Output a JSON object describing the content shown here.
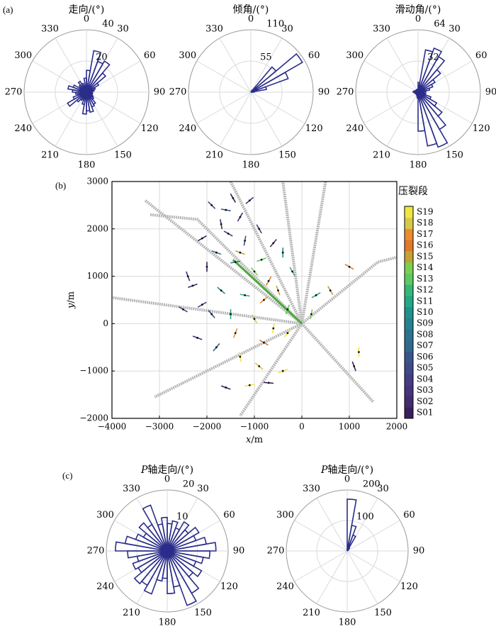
{
  "panel_labels": {
    "a": "(a)",
    "b": "(b)",
    "c": "(c)"
  },
  "colors": {
    "rose": "#2b2d8a",
    "well": "#b5b5b5",
    "grid": "#dadada",
    "main_well": "#4caa3a"
  },
  "chart_data": [
    {
      "id": "strike",
      "type": "rose",
      "title": "走向/(°)",
      "angle_labels": [
        "0",
        "30",
        "60",
        "90",
        "120",
        "150",
        "180",
        "210",
        "240",
        "270",
        "300",
        "330"
      ],
      "radial_max": 40,
      "radial_ticks": [
        20,
        40
      ],
      "bin_width_deg": 10,
      "bins": [
        {
          "center": 5,
          "value": 14
        },
        {
          "center": 15,
          "value": 27
        },
        {
          "center": 25,
          "value": 21
        },
        {
          "center": 35,
          "value": 23
        },
        {
          "center": 45,
          "value": 16
        },
        {
          "center": 55,
          "value": 9
        },
        {
          "center": 65,
          "value": 6
        },
        {
          "center": 75,
          "value": 5
        },
        {
          "center": 85,
          "value": 4
        },
        {
          "center": 95,
          "value": 3
        },
        {
          "center": 105,
          "value": 4
        },
        {
          "center": 115,
          "value": 4
        },
        {
          "center": 125,
          "value": 5
        },
        {
          "center": 135,
          "value": 6
        },
        {
          "center": 145,
          "value": 9
        },
        {
          "center": 155,
          "value": 10
        },
        {
          "center": 165,
          "value": 13
        },
        {
          "center": 175,
          "value": 12
        },
        {
          "center": 185,
          "value": 14
        },
        {
          "center": 195,
          "value": 8
        },
        {
          "center": 205,
          "value": 5
        },
        {
          "center": 215,
          "value": 6
        },
        {
          "center": 225,
          "value": 8
        },
        {
          "center": 235,
          "value": 14
        },
        {
          "center": 245,
          "value": 9
        },
        {
          "center": 255,
          "value": 6
        },
        {
          "center": 265,
          "value": 7
        },
        {
          "center": 275,
          "value": 9
        },
        {
          "center": 285,
          "value": 12
        },
        {
          "center": 295,
          "value": 9
        },
        {
          "center": 305,
          "value": 5
        },
        {
          "center": 315,
          "value": 6
        },
        {
          "center": 325,
          "value": 8
        },
        {
          "center": 335,
          "value": 6
        },
        {
          "center": 345,
          "value": 4
        },
        {
          "center": 355,
          "value": 9
        }
      ]
    },
    {
      "id": "dip",
      "type": "rose",
      "title": "倾角/(°)",
      "angle_labels": [
        "0",
        "30",
        "60",
        "90",
        "120",
        "150",
        "180",
        "210",
        "240",
        "270",
        "300",
        "330"
      ],
      "radial_max": 110,
      "radial_ticks": [
        55,
        110
      ],
      "bin_width_deg": 10,
      "bins": [
        {
          "center": 5,
          "value": 0
        },
        {
          "center": 15,
          "value": 0
        },
        {
          "center": 25,
          "value": 0
        },
        {
          "center": 35,
          "value": 4
        },
        {
          "center": 45,
          "value": 58
        },
        {
          "center": 55,
          "value": 105
        },
        {
          "center": 65,
          "value": 70
        },
        {
          "center": 75,
          "value": 28
        },
        {
          "center": 85,
          "value": 6
        }
      ]
    },
    {
      "id": "rake",
      "type": "rose",
      "title": "滑动角/(°)",
      "angle_labels": [
        "0",
        "30",
        "60",
        "90",
        "120",
        "150",
        "180",
        "210",
        "240",
        "270",
        "300",
        "330"
      ],
      "radial_max": 64,
      "radial_ticks": [
        32,
        64
      ],
      "bin_width_deg": 10,
      "bins": [
        {
          "center": 5,
          "value": 10
        },
        {
          "center": 15,
          "value": 44
        },
        {
          "center": 25,
          "value": 48
        },
        {
          "center": 35,
          "value": 42
        },
        {
          "center": 45,
          "value": 30
        },
        {
          "center": 55,
          "value": 20
        },
        {
          "center": 65,
          "value": 16
        },
        {
          "center": 75,
          "value": 12
        },
        {
          "center": 85,
          "value": 8
        },
        {
          "center": 95,
          "value": 6
        },
        {
          "center": 105,
          "value": 8
        },
        {
          "center": 115,
          "value": 14
        },
        {
          "center": 125,
          "value": 22
        },
        {
          "center": 135,
          "value": 32
        },
        {
          "center": 145,
          "value": 44
        },
        {
          "center": 155,
          "value": 60
        },
        {
          "center": 165,
          "value": 56
        },
        {
          "center": 175,
          "value": 40
        },
        {
          "center": 185,
          "value": 6
        },
        {
          "center": 195,
          "value": 4
        },
        {
          "center": 205,
          "value": 3
        },
        {
          "center": 215,
          "value": 2
        },
        {
          "center": 225,
          "value": 2
        },
        {
          "center": 235,
          "value": 3
        },
        {
          "center": 245,
          "value": 2
        },
        {
          "center": 255,
          "value": 3
        },
        {
          "center": 265,
          "value": 4
        },
        {
          "center": 275,
          "value": 5
        },
        {
          "center": 285,
          "value": 4
        },
        {
          "center": 295,
          "value": 3
        },
        {
          "center": 305,
          "value": 2
        },
        {
          "center": 315,
          "value": 3
        },
        {
          "center": 325,
          "value": 2
        },
        {
          "center": 335,
          "value": 3
        },
        {
          "center": 345,
          "value": 2
        },
        {
          "center": 355,
          "value": 3
        }
      ]
    },
    {
      "id": "map",
      "type": "scatter",
      "xlabel": "x/m",
      "ylabel": "y/m",
      "xlim": [
        -4000,
        2000
      ],
      "ylim": [
        -2000,
        3000
      ],
      "x_ticks": [
        -4000,
        -3000,
        -2000,
        -1000,
        0,
        1000,
        2000
      ],
      "y_ticks": [
        -2000,
        -1000,
        0,
        1000,
        2000,
        3000
      ],
      "grid": true,
      "legend_title": "压裂段",
      "stages": [
        "S01",
        "S02",
        "S03",
        "S04",
        "S05",
        "S06",
        "S07",
        "S08",
        "S09",
        "S10",
        "S11",
        "S12",
        "S13",
        "S14",
        "S15",
        "S16",
        "S17",
        "S18",
        "S19"
      ],
      "stage_colors": [
        "#3b1f5c",
        "#432c6b",
        "#46337e",
        "#433d84",
        "#3f4a8a",
        "#39568c",
        "#31688e",
        "#2c728e",
        "#26828e",
        "#21918c",
        "#23a884",
        "#35b779",
        "#5ec962",
        "#7ad151",
        "#c4a335",
        "#e07a2a",
        "#eb8c2f",
        "#d8c84a",
        "#f0e640"
      ],
      "main_well": {
        "from": [
          0,
          0
        ],
        "to": [
          -1450,
          1350
        ]
      },
      "wells": [
        {
          "points": [
            [
              0,
              0
            ],
            [
              -3300,
              2600
            ]
          ]
        },
        {
          "points": [
            [
              0,
              0
            ],
            [
              -2200,
              2200
            ],
            [
              -3200,
              2300
            ]
          ]
        },
        {
          "points": [
            [
              0,
              0
            ],
            [
              -1500,
              3000
            ]
          ]
        },
        {
          "points": [
            [
              0,
              0
            ],
            [
              -400,
              3000
            ]
          ]
        },
        {
          "points": [
            [
              0,
              0
            ],
            [
              500,
              3000
            ]
          ]
        },
        {
          "points": [
            [
              0,
              0
            ],
            [
              1600,
              1300
            ],
            [
              2000,
              1400
            ]
          ]
        },
        {
          "points": [
            [
              0,
              0
            ],
            [
              1500,
              -1650
            ]
          ]
        },
        {
          "points": [
            [
              0,
              0
            ],
            [
              -3100,
              -1550
            ]
          ]
        },
        {
          "points": [
            [
              0,
              0
            ],
            [
              -1300,
              -1950
            ]
          ]
        },
        {
          "points": [
            [
              0,
              0
            ],
            [
              -4000,
              550
            ]
          ]
        }
      ],
      "events": [
        {
          "x": -1450,
          "y": 2650,
          "stage": 1,
          "ang": 60
        },
        {
          "x": -1300,
          "y": 2250,
          "stage": 3,
          "ang": 120
        },
        {
          "x": -1900,
          "y": 2500,
          "stage": 5,
          "ang": 45
        },
        {
          "x": -1700,
          "y": 2100,
          "stage": 2,
          "ang": 80
        },
        {
          "x": -2100,
          "y": 1800,
          "stage": 1,
          "ang": 150
        },
        {
          "x": -1550,
          "y": 1900,
          "stage": 4,
          "ang": 30
        },
        {
          "x": -1200,
          "y": 1750,
          "stage": 6,
          "ang": 100
        },
        {
          "x": -900,
          "y": 2000,
          "stage": 3,
          "ang": 60
        },
        {
          "x": -600,
          "y": 1700,
          "stage": 2,
          "ang": 130
        },
        {
          "x": -1800,
          "y": 1500,
          "stage": 8,
          "ang": 20
        },
        {
          "x": -1400,
          "y": 1300,
          "stage": 9,
          "ang": 170
        },
        {
          "x": -1000,
          "y": 1100,
          "stage": 14,
          "ang": 50
        },
        {
          "x": -700,
          "y": 900,
          "stage": 16,
          "ang": 120
        },
        {
          "x": -2000,
          "y": 1200,
          "stage": 1,
          "ang": 90
        },
        {
          "x": -2300,
          "y": 800,
          "stage": 2,
          "ang": 160
        },
        {
          "x": -1700,
          "y": 700,
          "stage": 10,
          "ang": 40
        },
        {
          "x": -1200,
          "y": 600,
          "stage": 12,
          "ang": 10
        },
        {
          "x": -800,
          "y": 500,
          "stage": 17,
          "ang": 140
        },
        {
          "x": -500,
          "y": 700,
          "stage": 15,
          "ang": 70
        },
        {
          "x": -300,
          "y": 300,
          "stage": 13,
          "ang": 110
        },
        {
          "x": -2500,
          "y": 300,
          "stage": 4,
          "ang": 30
        },
        {
          "x": -2100,
          "y": 400,
          "stage": 5,
          "ang": 150
        },
        {
          "x": -1500,
          "y": 200,
          "stage": 11,
          "ang": 90
        },
        {
          "x": -1000,
          "y": 100,
          "stage": 18,
          "ang": 60
        },
        {
          "x": -600,
          "y": -100,
          "stage": 19,
          "ang": 100
        },
        {
          "x": -2200,
          "y": -300,
          "stage": 3,
          "ang": 20
        },
        {
          "x": -1800,
          "y": -500,
          "stage": 7,
          "ang": 130
        },
        {
          "x": -1300,
          "y": -700,
          "stage": 19,
          "ang": 80
        },
        {
          "x": -900,
          "y": -900,
          "stage": 18,
          "ang": 40
        },
        {
          "x": -1100,
          "y": -1300,
          "stage": 19,
          "ang": 170
        },
        {
          "x": -1600,
          "y": -1350,
          "stage": 2,
          "ang": 20
        },
        {
          "x": -700,
          "y": -1250,
          "stage": 1,
          "ang": 5
        },
        {
          "x": 300,
          "y": 600,
          "stage": 11,
          "ang": 150
        },
        {
          "x": 600,
          "y": 700,
          "stage": 15,
          "ang": 60
        },
        {
          "x": 1000,
          "y": 1200,
          "stage": 16,
          "ang": 30
        },
        {
          "x": 1200,
          "y": -600,
          "stage": 19,
          "ang": 90
        },
        {
          "x": 1100,
          "y": -900,
          "stage": 1,
          "ang": 70
        },
        {
          "x": -400,
          "y": -1000,
          "stage": 19,
          "ang": 160
        },
        {
          "x": 200,
          "y": 200,
          "stage": 14,
          "ang": 100
        },
        {
          "x": -200,
          "y": 1100,
          "stage": 12,
          "ang": 60
        },
        {
          "x": -1600,
          "y": 2400,
          "stage": 6,
          "ang": 10
        },
        {
          "x": -1100,
          "y": 2600,
          "stage": 4,
          "ang": 140
        },
        {
          "x": -2400,
          "y": 1000,
          "stage": 3,
          "ang": 70
        },
        {
          "x": -1300,
          "y": 1500,
          "stage": 15,
          "ang": 20
        },
        {
          "x": -850,
          "y": 1350,
          "stage": 13,
          "ang": 160
        },
        {
          "x": -400,
          "y": 1500,
          "stage": 10,
          "ang": 90
        },
        {
          "x": -1900,
          "y": 200,
          "stage": 6,
          "ang": 50
        },
        {
          "x": -1400,
          "y": -200,
          "stage": 17,
          "ang": 110
        },
        {
          "x": -800,
          "y": -400,
          "stage": 16,
          "ang": 30
        },
        {
          "x": -300,
          "y": -200,
          "stage": 19,
          "ang": 130
        }
      ]
    },
    {
      "id": "p_axis_left",
      "type": "rose",
      "title": "P轴走向/(°)",
      "angle_labels": [
        "0",
        "30",
        "60",
        "90",
        "120",
        "150",
        "180",
        "210",
        "240",
        "270",
        "300",
        "330"
      ],
      "radial_max": 20,
      "radial_ticks": [
        10,
        20
      ],
      "bin_width_deg": 10,
      "bins": [
        {
          "center": 5,
          "value": 9
        },
        {
          "center": 15,
          "value": 10
        },
        {
          "center": 25,
          "value": 8
        },
        {
          "center": 35,
          "value": 11
        },
        {
          "center": 45,
          "value": 9
        },
        {
          "center": 55,
          "value": 12
        },
        {
          "center": 65,
          "value": 10
        },
        {
          "center": 75,
          "value": 13
        },
        {
          "center": 85,
          "value": 16
        },
        {
          "center": 95,
          "value": 14
        },
        {
          "center": 105,
          "value": 12
        },
        {
          "center": 115,
          "value": 10
        },
        {
          "center": 125,
          "value": 13
        },
        {
          "center": 135,
          "value": 11
        },
        {
          "center": 145,
          "value": 16
        },
        {
          "center": 155,
          "value": 19
        },
        {
          "center": 165,
          "value": 12
        },
        {
          "center": 175,
          "value": 14
        },
        {
          "center": 185,
          "value": 9
        },
        {
          "center": 195,
          "value": 10
        },
        {
          "center": 205,
          "value": 15
        },
        {
          "center": 215,
          "value": 13
        },
        {
          "center": 225,
          "value": 14
        },
        {
          "center": 235,
          "value": 11
        },
        {
          "center": 245,
          "value": 12
        },
        {
          "center": 255,
          "value": 10
        },
        {
          "center": 265,
          "value": 13
        },
        {
          "center": 275,
          "value": 17
        },
        {
          "center": 285,
          "value": 14
        },
        {
          "center": 295,
          "value": 11
        },
        {
          "center": 305,
          "value": 9
        },
        {
          "center": 315,
          "value": 12
        },
        {
          "center": 325,
          "value": 10
        },
        {
          "center": 335,
          "value": 16
        },
        {
          "center": 345,
          "value": 9
        },
        {
          "center": 355,
          "value": 11
        }
      ]
    },
    {
      "id": "p_axis_right",
      "type": "rose",
      "title": "P轴走向/(°)",
      "angle_labels": [
        "0",
        "30",
        "60",
        "90",
        "120",
        "150",
        "180",
        "210",
        "240",
        "270",
        "300",
        "330"
      ],
      "radial_max": 200,
      "radial_ticks": [
        100,
        200
      ],
      "bin_width_deg": 10,
      "bins": [
        {
          "center": 5,
          "value": 170
        },
        {
          "center": 15,
          "value": 85
        },
        {
          "center": 25,
          "value": 55
        },
        {
          "center": 35,
          "value": 12
        },
        {
          "center": 45,
          "value": 5
        }
      ]
    }
  ]
}
